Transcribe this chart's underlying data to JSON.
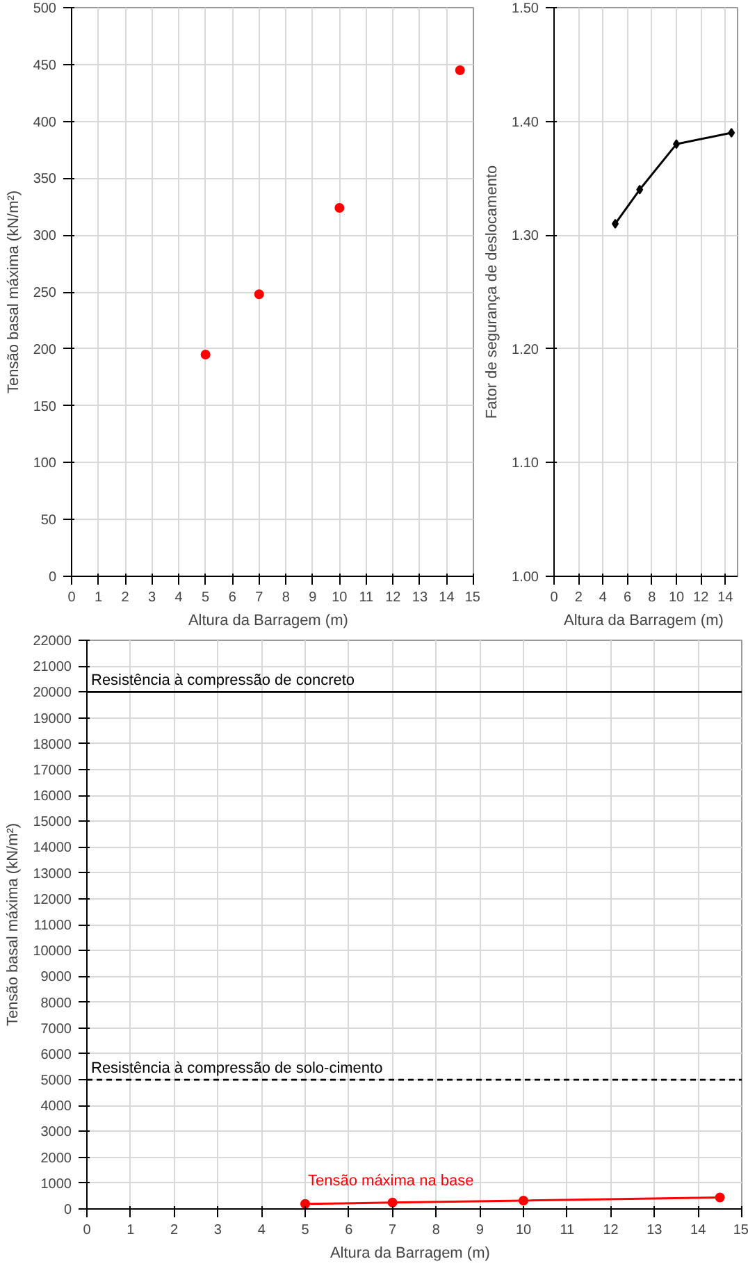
{
  "chart_data": [
    {
      "type": "scatter",
      "xlabel": "Altura da Barragem   (m)",
      "ylabel": "Tensão basal máxima (kN/m²)",
      "x": [
        5,
        7,
        10,
        14.5
      ],
      "series": [
        {
          "color": "#ff0000",
          "values": [
            195,
            248,
            324,
            445
          ]
        }
      ],
      "xlim": [
        0,
        15
      ],
      "xticks": [
        0,
        1,
        2,
        3,
        4,
        5,
        6,
        7,
        8,
        9,
        10,
        11,
        12,
        13,
        14,
        15
      ],
      "ylim": [
        0,
        500
      ],
      "yticks": [
        0,
        50,
        100,
        150,
        200,
        250,
        300,
        350,
        400,
        450,
        500
      ],
      "grid": true,
      "marker": "circle"
    },
    {
      "type": "line",
      "xlabel": "Altura da Barragem  (m)",
      "ylabel": "Fator de segurança de deslocamento",
      "x": [
        5,
        7,
        10,
        14.5
      ],
      "series": [
        {
          "color": "#000000",
          "values": [
            1.31,
            1.34,
            1.38,
            1.39
          ]
        }
      ],
      "xlim": [
        0,
        15
      ],
      "xticks": [
        0,
        2,
        4,
        6,
        8,
        10,
        12,
        14
      ],
      "ylim": [
        1.0,
        1.5
      ],
      "yticks": [
        {
          "value": 1.0,
          "label": "1.00"
        },
        {
          "value": 1.1,
          "label": "1.10"
        },
        {
          "value": 1.2,
          "label": "1.20"
        },
        {
          "value": 1.3,
          "label": "1.30"
        },
        {
          "value": 1.4,
          "label": "1.40"
        },
        {
          "value": 1.5,
          "label": "1.50"
        }
      ],
      "grid": true,
      "marker": "diamond"
    },
    {
      "type": "line",
      "xlabel": "Altura da Barragem   (m)",
      "ylabel": "Tensão basal máxima (kN/m²)",
      "x": [
        5,
        7,
        10,
        14.5
      ],
      "series": [
        {
          "name": "Tensão máxima na base",
          "color": "#ff0000",
          "values": [
            195,
            248,
            324,
            445
          ]
        }
      ],
      "xlim": [
        0,
        15
      ],
      "xticks": [
        0,
        1,
        2,
        3,
        4,
        5,
        6,
        7,
        8,
        9,
        10,
        11,
        12,
        13,
        14,
        15
      ],
      "ylim": [
        0,
        22000
      ],
      "yticks": [
        0,
        1000,
        2000,
        3000,
        4000,
        5000,
        6000,
        7000,
        8000,
        9000,
        10000,
        11000,
        12000,
        13000,
        14000,
        15000,
        16000,
        17000,
        18000,
        19000,
        20000,
        21000,
        22000
      ],
      "ref_lines": [
        {
          "axis": "y",
          "value": 20000,
          "label": "Resistência à compressão de concreto",
          "color": "#000000",
          "line_style": "solid"
        },
        {
          "axis": "y",
          "value": 5000,
          "label": "Resistência à compressão de solo-cimento",
          "color": "#000000",
          "line_style": "dashed"
        }
      ],
      "grid": true,
      "marker": "circle"
    }
  ]
}
